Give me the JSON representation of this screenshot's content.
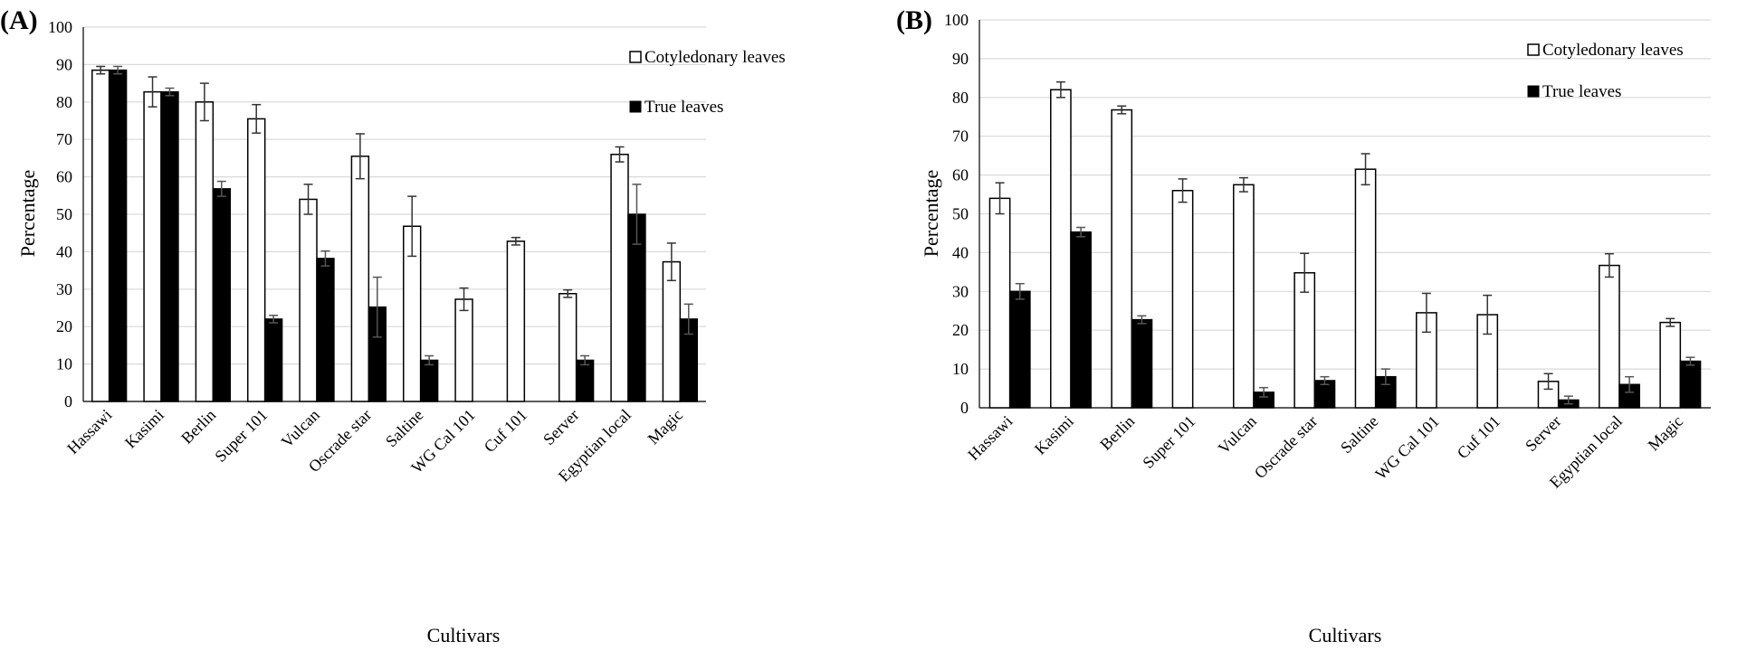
{
  "chart_data": [
    {
      "type": "bar",
      "panel_label": "(A)",
      "categories": [
        "Hassawi",
        "Kasimi",
        "Berlin",
        "Super 101",
        "Vulcan",
        "Oscrade star",
        "Saltine",
        "WG Cal 101",
        "Cuf 101",
        "Server",
        "Egyptian local",
        "Magic"
      ],
      "series": [
        {
          "name": "Cotyledonary leaves",
          "values": [
            88.5,
            82.7,
            80.0,
            75.5,
            54.0,
            65.5,
            46.8,
            27.3,
            42.8,
            28.8,
            66.0,
            37.3
          ],
          "errors": [
            1.0,
            4.0,
            5.0,
            3.8,
            4.0,
            6.0,
            8.0,
            3.0,
            1.0,
            1.0,
            2.0,
            5.0
          ]
        },
        {
          "name": "True leaves",
          "values": [
            88.5,
            82.7,
            56.8,
            22.0,
            38.2,
            25.2,
            11.0,
            0,
            0,
            11.0,
            50.0,
            22.0
          ],
          "errors": [
            1.0,
            1.0,
            2.0,
            1.0,
            2.0,
            8.0,
            1.2,
            0,
            0,
            1.2,
            8.0,
            4.0
          ]
        }
      ],
      "ylim": [
        0,
        100
      ],
      "yticks": [
        "0",
        "10",
        "20",
        "30",
        "40",
        "50",
        "60",
        "70",
        "80",
        "90",
        "100"
      ],
      "xlabel": "Cultivars",
      "ylabel": "Percentage",
      "legend": "top-right",
      "grid": true
    },
    {
      "type": "bar",
      "panel_label": "(B)",
      "categories": [
        "Hassawi",
        "Kasimi",
        "Berlin",
        "Super 101",
        "Vulcan",
        "Oscrade star",
        "Saltine",
        "WG Cal 101",
        "Cuf 101",
        "Server",
        "Egyptian local",
        "Magic"
      ],
      "series": [
        {
          "name": "Cotyledonary leaves",
          "values": [
            54.0,
            82.0,
            76.8,
            56.0,
            57.5,
            34.8,
            61.5,
            24.5,
            24.0,
            6.8,
            36.7,
            22.0
          ],
          "errors": [
            4.0,
            2.0,
            1.0,
            3.0,
            1.8,
            5.0,
            4.0,
            5.0,
            5.0,
            2.0,
            3.0,
            1.0
          ]
        },
        {
          "name": "True leaves",
          "values": [
            30.0,
            45.3,
            22.7,
            0,
            4.0,
            7.0,
            8.0,
            0,
            0,
            2.0,
            6.0,
            12.0
          ],
          "errors": [
            2.0,
            1.2,
            1.0,
            0,
            1.2,
            1.0,
            2.0,
            0,
            0,
            1.0,
            2.0,
            1.0
          ]
        }
      ],
      "ylim": [
        0,
        100
      ],
      "yticks": [
        "0",
        "10",
        "20",
        "30",
        "40",
        "50",
        "60",
        "70",
        "80",
        "90",
        "100"
      ],
      "xlabel": "Cultivars",
      "ylabel": "Percentage",
      "legend": "top-right",
      "grid": true
    }
  ]
}
